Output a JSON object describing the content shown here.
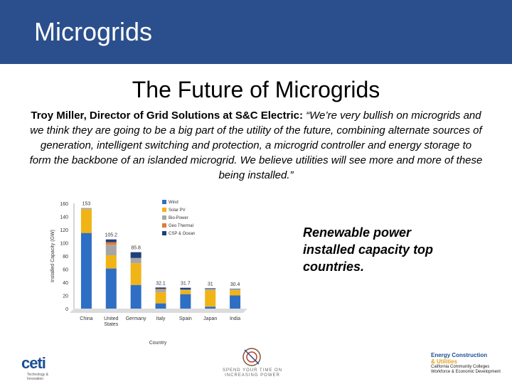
{
  "slide": {
    "header_title": "Microgrids",
    "subtitle": "The Future of Microgrids",
    "speaker": "Troy Miller, Director of Grid Solutions at S&C Electric:",
    "quote": "“We’re very bullish on microgrids and we think they are going to be a big part of the utility of the future, combining alternate sources of generation, intelligent switching and protection, a microgrid controller and energy storage to form the backbone of an islanded microgrid. We believe utilities will see more and more of these being installed.”",
    "caption": "Renewable power installed capacity top countries."
  },
  "logos": {
    "ceti": "ceti",
    "ceti_sub": "Technology & Innovation",
    "band": "SPEND YOUR TIME ON INCREASING POWER",
    "ecu_line1": "Energy Construction",
    "ecu_line2": "& Utilities",
    "ecu_line3": "California Community Colleges",
    "ecu_line4": "Workforce & Economic Development"
  },
  "chart_data": {
    "type": "bar",
    "stacked": true,
    "categories": [
      "China",
      "United States",
      "Germany",
      "Italy",
      "Spain",
      "Japan",
      "India"
    ],
    "totals": [
      153,
      105.2,
      85.8,
      32.1,
      31.7,
      31,
      30.4
    ],
    "series": [
      {
        "name": "Wind",
        "color": "#2e6fc4",
        "values": [
          115,
          61,
          36,
          8,
          22,
          3,
          20
        ]
      },
      {
        "name": "Solar PV",
        "color": "#f0b416",
        "values": [
          36,
          20,
          33,
          17,
          6,
          25,
          8
        ]
      },
      {
        "name": "Bio-Power",
        "color": "#a6a6a6",
        "values": [
          2,
          16,
          8,
          4,
          1,
          2,
          2
        ]
      },
      {
        "name": "Geo Thermal",
        "color": "#e07b3a",
        "values": [
          0,
          4,
          0,
          1,
          0,
          0,
          0
        ]
      },
      {
        "name": "CSP & Ocean",
        "color": "#1f3f7a",
        "values": [
          0,
          4.2,
          8.8,
          2.1,
          2.7,
          1,
          0.4
        ]
      }
    ],
    "ylabel": "Installed Capacity (GW)",
    "xlabel": "Country",
    "ylim": [
      0,
      160
    ],
    "yticks": [
      0,
      20,
      40,
      60,
      80,
      100,
      120,
      140,
      160
    ],
    "legend": "top-center",
    "grid": false
  }
}
